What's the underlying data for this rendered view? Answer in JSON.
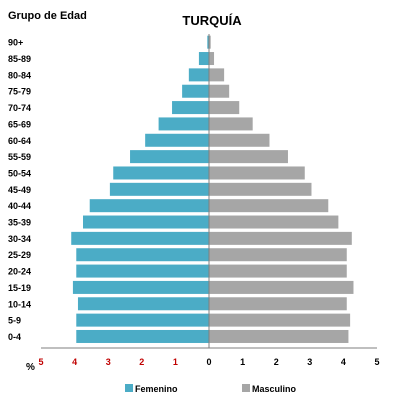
{
  "chart_data": {
    "type": "bar",
    "subtype": "population-pyramid",
    "title": "TURQUÍA",
    "corner_label": "Grupo de Edad",
    "xlabel": "%",
    "categories": [
      "90+",
      "85-89",
      "80-84",
      "75-79",
      "70-74",
      "65-69",
      "60-64",
      "55-59",
      "50-54",
      "45-49",
      "40-44",
      "35-39",
      "30-34",
      "25-29",
      "20-24",
      "15-19",
      "10-14",
      "5-9",
      "0-4"
    ],
    "series": [
      {
        "name": "Femenino",
        "side": "left",
        "color": "#4bacc6",
        "values": [
          0.05,
          0.3,
          0.6,
          0.8,
          1.1,
          1.5,
          1.9,
          2.35,
          2.85,
          2.95,
          3.55,
          3.75,
          4.1,
          3.95,
          3.95,
          4.05,
          3.9,
          3.95,
          3.95
        ]
      },
      {
        "name": "Masculino",
        "side": "right",
        "color": "#a6a6a6",
        "values": [
          0.05,
          0.15,
          0.45,
          0.6,
          0.9,
          1.3,
          1.8,
          2.35,
          2.85,
          3.05,
          3.55,
          3.85,
          4.25,
          4.1,
          4.1,
          4.3,
          4.1,
          4.2,
          4.15
        ]
      }
    ],
    "x_ticks_left": [
      "5",
      "4",
      "3",
      "2",
      "1"
    ],
    "x_ticks_left_color": "#c00000",
    "x_ticks_right": [
      "0",
      "1",
      "2",
      "3",
      "4",
      "5"
    ],
    "xlim": [
      -5,
      5
    ],
    "grid": false,
    "legend_position": "bottom"
  }
}
